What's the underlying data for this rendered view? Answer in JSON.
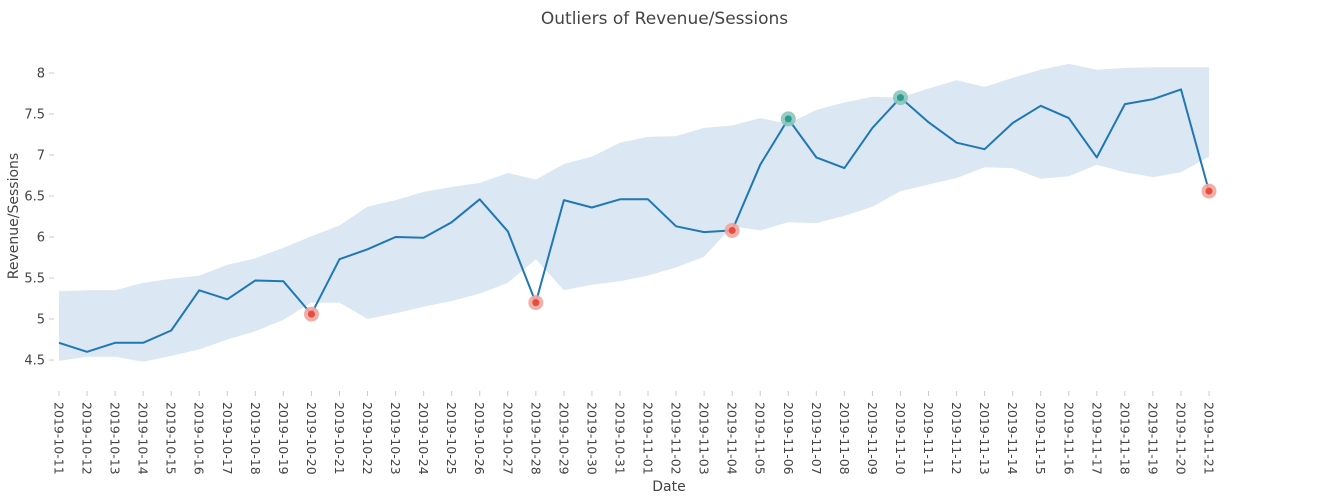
{
  "chart_data": {
    "type": "line",
    "title": "Outliers of Revenue/Sessions",
    "xlabel": "Date",
    "ylabel": "Revenue/Sessions",
    "ylim": [
      4.22,
      8.28
    ],
    "yticks": [
      4.5,
      5,
      5.5,
      6,
      6.5,
      7,
      7.5,
      8
    ],
    "ytick_labels": [
      "4.5",
      "5",
      "5.5",
      "6",
      "6.5",
      "7",
      "7.5",
      "8"
    ],
    "grid": false,
    "legend": "none",
    "x": [
      "2019-10-11",
      "2019-10-12",
      "2019-10-13",
      "2019-10-14",
      "2019-10-15",
      "2019-10-16",
      "2019-10-17",
      "2019-10-18",
      "2019-10-19",
      "2019-10-20",
      "2019-10-21",
      "2019-10-22",
      "2019-10-23",
      "2019-10-24",
      "2019-10-25",
      "2019-10-26",
      "2019-10-27",
      "2019-10-28",
      "2019-10-29",
      "2019-10-30",
      "2019-10-31",
      "2019-11-01",
      "2019-11-02",
      "2019-11-03",
      "2019-11-04",
      "2019-11-05",
      "2019-11-06",
      "2019-11-07",
      "2019-11-08",
      "2019-11-09",
      "2019-11-10",
      "2019-11-11",
      "2019-11-12",
      "2019-11-13",
      "2019-11-14",
      "2019-11-15",
      "2019-11-16",
      "2019-11-17",
      "2019-11-18",
      "2019-11-19",
      "2019-11-20",
      "2019-11-21"
    ],
    "series": [
      {
        "values": [
          4.71,
          4.6,
          4.71,
          4.71,
          4.86,
          5.35,
          5.24,
          5.47,
          5.46,
          5.06,
          5.73,
          5.85,
          6.0,
          5.99,
          6.18,
          6.46,
          6.07,
          5.2,
          6.45,
          6.36,
          6.46,
          6.46,
          6.13,
          6.06,
          6.08,
          6.88,
          7.44,
          6.97,
          6.84,
          7.33,
          7.7,
          7.4,
          7.15,
          7.07,
          7.39,
          7.6,
          7.45,
          6.97,
          7.62,
          7.68,
          7.8,
          6.56
        ]
      }
    ],
    "band": {
      "upper": [
        5.34,
        5.35,
        5.35,
        5.44,
        5.49,
        5.53,
        5.66,
        5.74,
        5.87,
        6.01,
        6.14,
        6.37,
        6.45,
        6.55,
        6.61,
        6.66,
        6.78,
        6.7,
        6.89,
        6.98,
        7.15,
        7.22,
        7.23,
        7.33,
        7.36,
        7.45,
        7.38,
        7.55,
        7.64,
        7.71,
        7.7,
        7.81,
        7.91,
        7.83,
        7.94,
        8.04,
        8.11,
        8.04,
        8.06,
        8.07,
        8.07,
        8.07
      ],
      "lower": [
        4.49,
        4.54,
        4.54,
        4.48,
        4.55,
        4.63,
        4.75,
        4.85,
        4.99,
        5.2,
        5.2,
        5.0,
        5.07,
        5.15,
        5.22,
        5.31,
        5.44,
        5.73,
        5.35,
        5.42,
        5.46,
        5.53,
        5.63,
        5.76,
        6.13,
        6.08,
        6.18,
        6.17,
        6.26,
        6.37,
        6.56,
        6.64,
        6.72,
        6.85,
        6.84,
        6.71,
        6.74,
        6.88,
        6.79,
        6.73,
        6.79,
        6.98
      ]
    },
    "outliers": {
      "low": [
        {
          "x": "2019-10-20",
          "y": 5.06
        },
        {
          "x": "2019-10-28",
          "y": 5.2
        },
        {
          "x": "2019-11-04",
          "y": 6.08
        },
        {
          "x": "2019-11-21",
          "y": 6.56
        }
      ],
      "high": [
        {
          "x": "2019-11-06",
          "y": 7.44
        },
        {
          "x": "2019-11-10",
          "y": 7.7
        }
      ]
    },
    "colors": {
      "line": "#1f77b4",
      "band": "#dbe7f3",
      "low_outlier": "#e74c3c",
      "low_outlier_halo": "#f1a59e",
      "high_outlier": "#2a9d8f",
      "high_outlier_halo": "#8cc5bc",
      "axis_text": "#444444",
      "tick": "#cccccc"
    }
  }
}
